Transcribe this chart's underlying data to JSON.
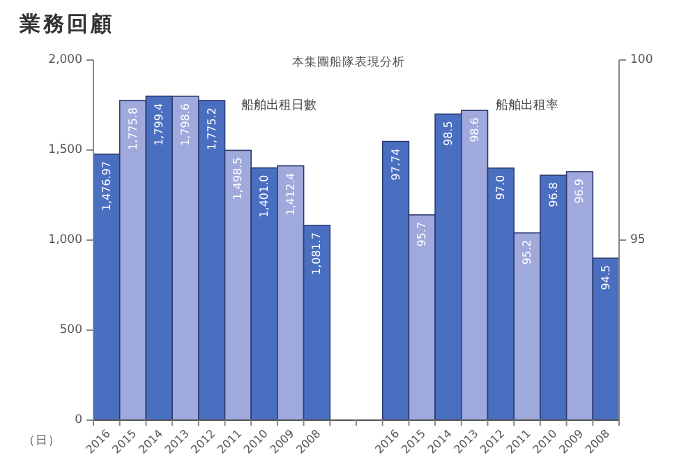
{
  "chart_data": {
    "type": "bar",
    "title": "業務回顧",
    "subtitle": "本集團船隊表現分析",
    "ylabel": "（日）",
    "annotations": [
      "船舶出租日數",
      "船舶出租率"
    ],
    "categories": [
      "2016",
      "2015",
      "2014",
      "2013",
      "2012",
      "2011",
      "2010",
      "2009",
      "2008",
      null,
      null,
      "2016",
      "2015",
      "2014",
      "2013",
      "2012",
      "2011",
      "2010",
      "2009",
      "2008"
    ],
    "series": [
      {
        "axis": "y",
        "colors": [
          "#4a6fc1",
          "#a0a9dc",
          "#4a6fc1",
          "#a0a9dc",
          "#4a6fc1",
          "#a0a9dc",
          "#4a6fc1",
          "#a0a9dc",
          "#4a6fc1",
          null,
          null,
          null,
          null,
          null,
          null,
          null,
          null,
          null,
          null,
          null
        ],
        "values": [
          1476.97,
          1775.8,
          1799.4,
          1798.6,
          1775.2,
          1498.5,
          1401.0,
          1412.4,
          1081.7,
          null,
          null,
          null,
          null,
          null,
          null,
          null,
          null,
          null,
          null,
          null
        ],
        "value_labels": [
          "1,476.97",
          "1,775.8",
          "1,799.4",
          "1,798.6",
          "1,775.2",
          "1,498.5",
          "1,401.0",
          "1,412.4",
          "1,081.7",
          null,
          null,
          null,
          null,
          null,
          null,
          null,
          null,
          null,
          null,
          null
        ]
      },
      {
        "axis": "y2",
        "colors": [
          null,
          null,
          null,
          null,
          null,
          null,
          null,
          null,
          null,
          null,
          null,
          "#4a6fc1",
          "#a0a9dc",
          "#4a6fc1",
          "#a0a9dc",
          "#4a6fc1",
          "#a0a9dc",
          "#4a6fc1",
          "#a0a9dc",
          "#4a6fc1"
        ],
        "values": [
          null,
          null,
          null,
          null,
          null,
          null,
          null,
          null,
          null,
          null,
          null,
          97.74,
          95.7,
          98.5,
          98.6,
          97.0,
          95.2,
          96.8,
          96.9,
          94.5
        ],
        "value_labels": [
          null,
          null,
          null,
          null,
          null,
          null,
          null,
          null,
          null,
          null,
          null,
          "97.74",
          "95.7",
          "98.5",
          "98.6",
          "97.0",
          "95.2",
          "96.8",
          "96.9",
          "94.5"
        ]
      }
    ],
    "ylim": [
      0,
      2000
    ],
    "yticks": [
      0,
      {
        "value": 500,
        "label": "500"
      },
      {
        "value": 1000,
        "label": "1,000"
      },
      {
        "value": 1500,
        "label": "1,500"
      },
      {
        "value": 2000,
        "label": "2,000"
      }
    ],
    "y2lim": [
      90,
      100
    ],
    "y2ticks": [
      95,
      100
    ]
  }
}
